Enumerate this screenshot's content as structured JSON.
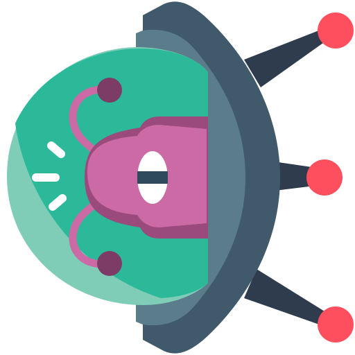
{
  "illustration": {
    "subject": "alien-in-flying-saucer-icon",
    "colors": {
      "antenna_dark": "#2f3c4e",
      "antenna_tip": "#fe4f5f",
      "hull_dark": "#405a6c",
      "hull_light": "#5b7c8a",
      "dome_light": "#7fcdb7",
      "dome_main": "#2bb99a",
      "alien_body": "#cc6aa6",
      "alien_shadow": "#9a4a7c",
      "alien_antenna_ball": "#7c3c66",
      "eye_white": "#ffffff",
      "eye_pupil": "#2f4a5c",
      "sparkle": "#ffffff"
    }
  }
}
